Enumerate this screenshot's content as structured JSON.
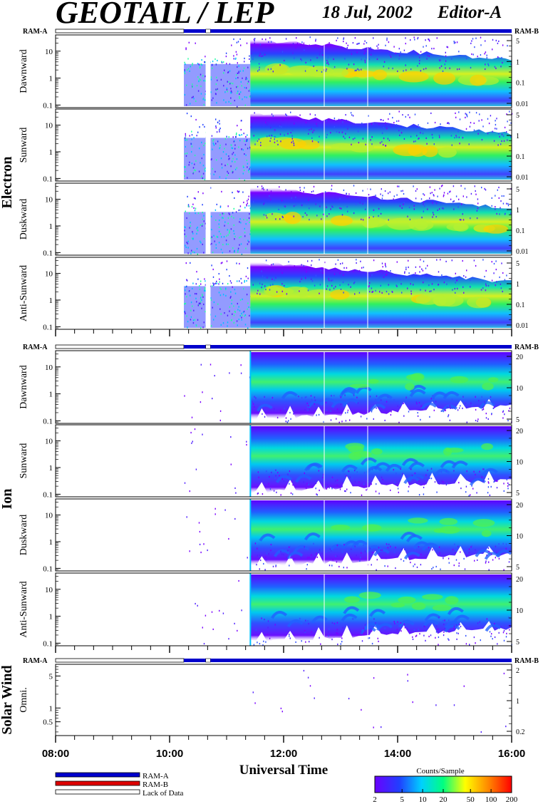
{
  "header": {
    "instrument": "GEOTAIL / LEP",
    "date": "18 Jul, 2002",
    "editor": "Editor-A"
  },
  "ram_labels": {
    "left": "RAM-A",
    "right": "RAM-B"
  },
  "groups": [
    {
      "name": "Electron",
      "panels": [
        "Dawnward",
        "Sunward",
        "Duskward",
        "Anti-Sunward"
      ]
    },
    {
      "name": "Ion",
      "panels": [
        "Dawnward",
        "Sunward",
        "Duskward",
        "Anti-Sunward"
      ]
    },
    {
      "name": "Solar Wind",
      "panels": [
        "Omni."
      ]
    }
  ],
  "chart_data": {
    "type": "heatmap",
    "xlabel": "Universal Time",
    "x_ticks": [
      "08:00",
      "10:00",
      "12:00",
      "14:00",
      "16:00"
    ],
    "xlim": [
      "08:00",
      "16:00"
    ],
    "panel_axes": {
      "electron": {
        "left_ticks": [
          "10",
          "1",
          "0.1"
        ],
        "left_range": [
          0.08,
          40
        ],
        "right_ticks": [
          "5",
          "1",
          "0.1",
          "0.01"
        ],
        "scale": "log"
      },
      "ion": {
        "left_ticks": [
          "10",
          "1",
          "0.1"
        ],
        "left_range": [
          0.08,
          40
        ],
        "right_ticks": [
          "20",
          "10",
          "5"
        ],
        "scale": "log"
      },
      "solar_wind": {
        "left_ticks": [
          "5",
          "1",
          "0.5"
        ],
        "left_range": [
          0.25,
          9
        ],
        "right_ticks": [
          "2",
          "1",
          "0.2"
        ],
        "scale": "log"
      }
    },
    "data_coverage": {
      "lack_of_data_until": "10:15",
      "gap": [
        "10:38",
        "10:43"
      ],
      "ram_a_after": "10:15"
    },
    "plasma_onset": "11:25",
    "colorbar": {
      "title": "Counts/Sample",
      "scale": "log",
      "ticks": [
        "2",
        "5",
        "10",
        "20",
        "50",
        "100",
        "200"
      ],
      "range": [
        2,
        200
      ],
      "colors": [
        "#6a00ff",
        "#2040ff",
        "#00d0ff",
        "#00ff80",
        "#ffff00",
        "#ff8000",
        "#ff0000"
      ]
    }
  },
  "legend": [
    {
      "label": "RAM-A",
      "color": "#0000cc"
    },
    {
      "label": "RAM-B",
      "color": "#dd0000"
    },
    {
      "label": "Lack of Data",
      "color": "#ffffff"
    }
  ]
}
